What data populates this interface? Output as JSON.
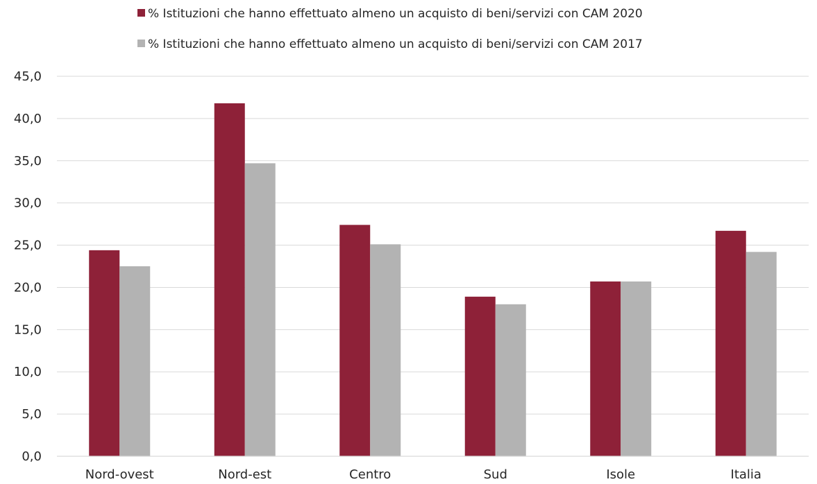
{
  "chart_data": {
    "type": "bar",
    "categories": [
      "Nord-ovest",
      "Nord-est",
      "Centro",
      "Sud",
      "Isole",
      "Italia"
    ],
    "series": [
      {
        "name": "% Istituzioni che hanno effettuato almeno un acquisto di beni/servizi con CAM 2020",
        "color": "#8e2138",
        "values": [
          24.4,
          41.8,
          27.4,
          18.9,
          20.7,
          26.7
        ]
      },
      {
        "name": "% Istituzioni che hanno effettuato almeno un acquisto di beni/servizi con CAM 2017",
        "color": "#b3b3b3",
        "values": [
          22.5,
          34.7,
          25.1,
          18.0,
          20.7,
          24.2
        ]
      }
    ],
    "ylim": [
      0,
      45
    ],
    "yticks": [
      "0,0",
      "5,0",
      "10,0",
      "15,0",
      "20,0",
      "25,0",
      "30,0",
      "35,0",
      "40,0",
      "45,0"
    ],
    "grid": true,
    "legend_position": "top-center"
  }
}
